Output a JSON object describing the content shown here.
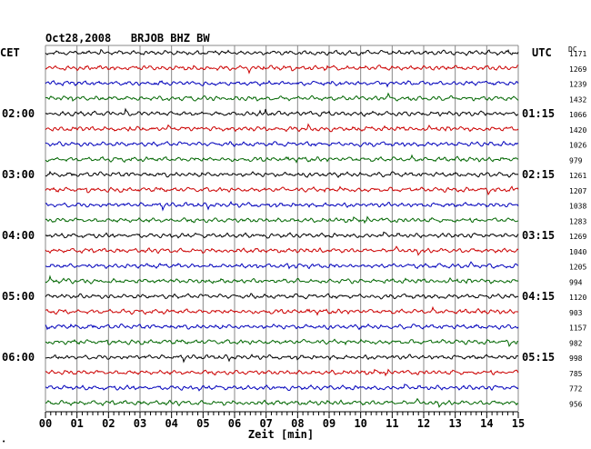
{
  "chart_data": {
    "type": "line",
    "title": "Oct28,2008   BRJOB BHZ BW",
    "left_axis_label": "CET",
    "right_axis_label": "UTC",
    "dc_label": "DC",
    "xlabel": "Zeit [min]",
    "xlim": [
      0,
      15
    ],
    "x_ticks": [
      "00",
      "01",
      "02",
      "03",
      "04",
      "05",
      "06",
      "07",
      "08",
      "09",
      "10",
      "11",
      "12",
      "13",
      "14",
      "15"
    ],
    "left_time_labels": [
      {
        "row": 4,
        "text": "02:00"
      },
      {
        "row": 8,
        "text": "03:00"
      },
      {
        "row": 12,
        "text": "04:00"
      },
      {
        "row": 16,
        "text": "05:00"
      },
      {
        "row": 20,
        "text": "06:00"
      }
    ],
    "right_time_labels": [
      {
        "row": 4,
        "text": "01:15"
      },
      {
        "row": 8,
        "text": "02:15"
      },
      {
        "row": 12,
        "text": "03:15"
      },
      {
        "row": 16,
        "text": "04:15"
      },
      {
        "row": 20,
        "text": "05:15"
      }
    ],
    "trace_colors": [
      "#000000",
      "#cc0000",
      "#0000bb",
      "#006600"
    ],
    "dc_values": [
      "1171",
      "1269",
      "1239",
      "1432",
      "1066",
      "1420",
      "1026",
      "979",
      "1261",
      "1207",
      "1038",
      "1283",
      "1269",
      "1040",
      "1205",
      "994",
      "1120",
      "903",
      "1157",
      "982",
      "998",
      "785",
      "772",
      "956"
    ],
    "corner_mark": "•"
  }
}
